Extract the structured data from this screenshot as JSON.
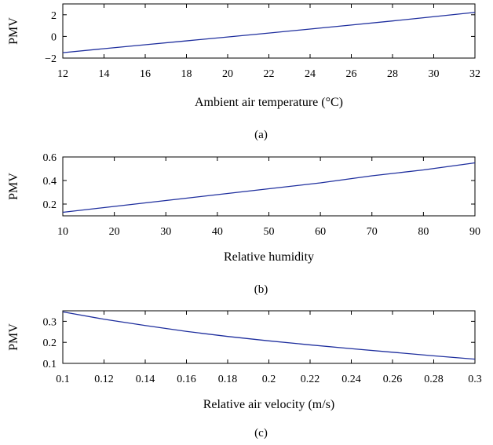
{
  "chart_data": [
    {
      "type": "line",
      "panel_label": "(a)",
      "xlabel": "Ambient air temperature (°C)",
      "ylabel": "PMV",
      "xlim": [
        12,
        32
      ],
      "ylim": [
        -2,
        3
      ],
      "xticks": [
        12,
        14,
        16,
        18,
        20,
        22,
        24,
        26,
        28,
        30,
        32
      ],
      "yticks": [
        -2,
        0,
        2
      ],
      "grid": false,
      "color": "#1f2f9e",
      "series": [
        {
          "x": [
            12,
            14,
            16,
            18,
            20,
            22,
            24,
            26,
            28,
            30,
            32
          ],
          "y": [
            -1.5,
            -1.13,
            -0.77,
            -0.41,
            -0.05,
            0.31,
            0.68,
            1.05,
            1.43,
            1.82,
            2.22
          ]
        }
      ]
    },
    {
      "type": "line",
      "panel_label": "(b)",
      "xlabel": "Relative humidity",
      "ylabel": "PMV",
      "xlim": [
        10,
        90
      ],
      "ylim": [
        0.1,
        0.6
      ],
      "xticks": [
        10,
        20,
        30,
        40,
        50,
        60,
        70,
        80,
        90
      ],
      "yticks": [
        0.2,
        0.4,
        0.6
      ],
      "ytick_labels": [
        "0.2",
        "0.4",
        "0.6"
      ],
      "grid": false,
      "color": "#1f2f9e",
      "series": [
        {
          "x": [
            10,
            20,
            30,
            40,
            50,
            60,
            70,
            80,
            90
          ],
          "y": [
            0.13,
            0.18,
            0.23,
            0.28,
            0.33,
            0.38,
            0.44,
            0.49,
            0.55
          ]
        }
      ]
    },
    {
      "type": "line",
      "panel_label": "(c)",
      "xlabel": "Relative air velocity (m/s)",
      "ylabel": "PMV",
      "xlim": [
        0.1,
        0.3
      ],
      "ylim": [
        0.1,
        0.35
      ],
      "xticks": [
        0.1,
        0.12,
        0.14,
        0.16,
        0.18,
        0.2,
        0.22,
        0.24,
        0.26,
        0.28,
        0.3
      ],
      "xtick_labels": [
        "0.1",
        "0.12",
        "0.14",
        "0.16",
        "0.18",
        "0.2",
        "0.22",
        "0.24",
        "0.26",
        "0.28",
        "0.3"
      ],
      "yticks": [
        0.1,
        0.2,
        0.3
      ],
      "ytick_labels": [
        "0.1",
        "0.2",
        "0.3"
      ],
      "grid": false,
      "color": "#1f2f9e",
      "series": [
        {
          "x": [
            0.1,
            0.12,
            0.14,
            0.16,
            0.18,
            0.2,
            0.22,
            0.24,
            0.26,
            0.28,
            0.3
          ],
          "y": [
            0.345,
            0.31,
            0.28,
            0.252,
            0.228,
            0.207,
            0.188,
            0.17,
            0.153,
            0.136,
            0.12
          ]
        }
      ]
    }
  ]
}
